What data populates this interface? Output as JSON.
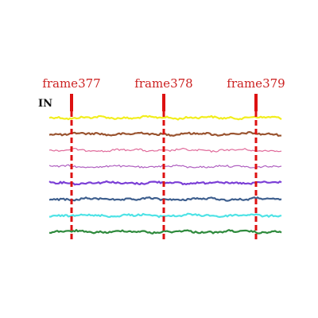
{
  "label": "IN",
  "frames": [
    {
      "label": "frame377"
    },
    {
      "label": "frame378"
    },
    {
      "label": "frame379"
    }
  ],
  "marker_color": "#dd1111",
  "signals": [
    {
      "color": "#f2ee1e",
      "style": "solid"
    },
    {
      "color": "#9a5430",
      "style": "solid"
    },
    {
      "color": "#e06a9a",
      "style": "thin"
    },
    {
      "color": "#b060c0",
      "style": "thin"
    },
    {
      "color": "#7b3fd6",
      "style": "solid"
    },
    {
      "color": "#3e5f8e",
      "style": "solid"
    },
    {
      "color": "#4fe3e6",
      "style": "solid"
    },
    {
      "color": "#2e8a3c",
      "style": "solid"
    }
  ]
}
